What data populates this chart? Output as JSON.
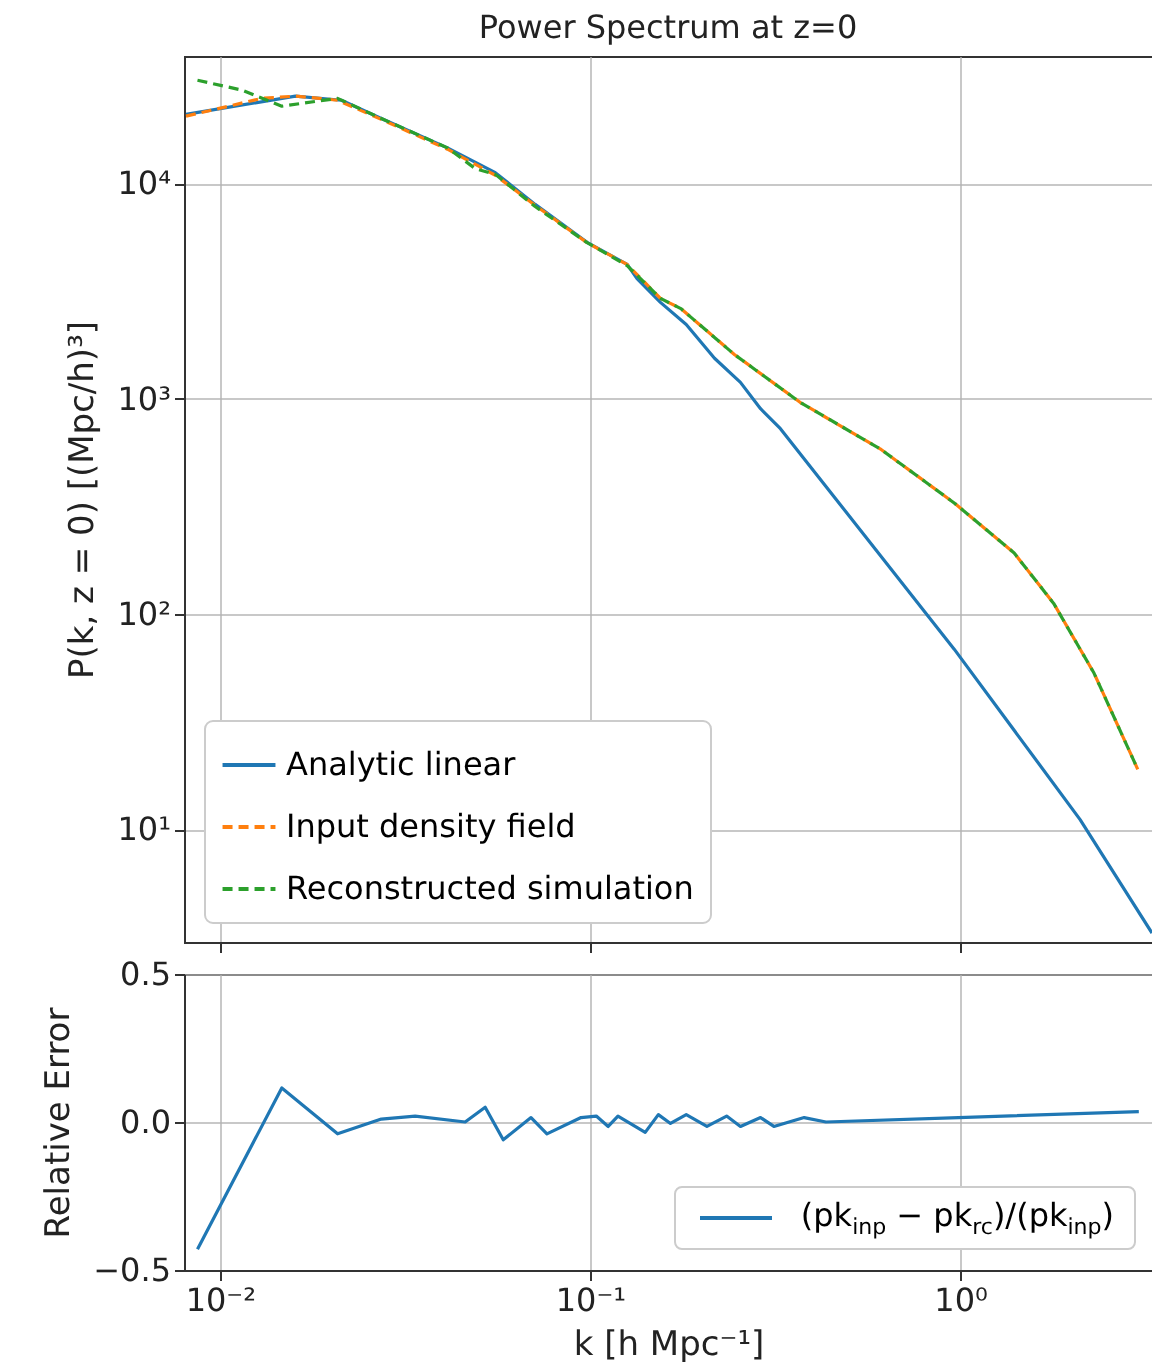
{
  "chart_data": [
    {
      "type": "line",
      "title": "Power Spectrum at z=0",
      "ylabel": "P(k, z = 0) [(Mpc/h)³]",
      "log": "xy",
      "grid": true,
      "legend": "bottom left",
      "tick_labels": "y",
      "xlim": [
        0.008,
        3.3
      ],
      "xticks": [
        {
          "value": 0.01,
          "label": null
        },
        {
          "value": 0.1,
          "label": null
        },
        {
          "value": 1,
          "label": null
        }
      ],
      "ylim": [
        3.0,
        39000
      ],
      "yticks": [
        {
          "value": 10,
          "label": "10¹"
        },
        {
          "value": 100,
          "label": "10²"
        },
        {
          "value": 1000,
          "label": "10³"
        },
        {
          "value": 10000,
          "label": "10⁴"
        }
      ],
      "series": [
        {
          "name": "Analytic linear",
          "color": "#1f77b4",
          "line_style": "solid",
          "x": [
            0.0081,
            0.016,
            0.0213,
            0.0273,
            0.0412,
            0.0555,
            0.0711,
            0.0982,
            0.126,
            0.134,
            0.155,
            0.182,
            0.217,
            0.255,
            0.289,
            0.327,
            0.964,
            2.11,
            3.3
          ],
          "values": [
            20900,
            25400,
            24300,
            20000,
            14600,
            11200,
            7980,
            5320,
            4200,
            3610,
            2800,
            2210,
            1540,
            1190,
            898,
            725,
            68.7,
            11.1,
            3.3
          ]
        },
        {
          "name": "Input density field",
          "color": "#ff7f0e",
          "line_style": "dashed",
          "x": [
            0.0081,
            0.013,
            0.016,
            0.0208,
            0.0273,
            0.0412,
            0.0555,
            0.0711,
            0.0982,
            0.126,
            0.155,
            0.176,
            0.246,
            0.371,
            0.608,
            0.964,
            1.4,
            1.79,
            2.3,
            3.02
          ],
          "values": [
            20500,
            24800,
            25400,
            24300,
            19800,
            14400,
            10900,
            7900,
            5300,
            4200,
            2920,
            2620,
            1600,
            957,
            585,
            328,
            192,
            112,
            53.2,
            19.0
          ]
        },
        {
          "name": "Reconstructed simulation",
          "color": "#2ca02c",
          "line_style": "dashed",
          "x": [
            0.0087,
            0.01146,
            0.0147,
            0.0208,
            0.0273,
            0.0412,
            0.049,
            0.0555,
            0.0711,
            0.0982,
            0.126,
            0.155,
            0.176,
            0.246,
            0.371,
            0.608,
            0.964,
            1.4,
            1.79,
            2.3,
            3.02
          ],
          "values": [
            30100,
            27100,
            22800,
            24800,
            20000,
            14600,
            11700,
            11000,
            7800,
            5300,
            4150,
            2920,
            2620,
            1600,
            957,
            585,
            328,
            192,
            112,
            53.2,
            19.0
          ]
        }
      ]
    },
    {
      "type": "line",
      "xlabel": "k [h Mpc⁻¹]",
      "ylabel": "Relative Error",
      "log": "x",
      "grid": true,
      "legend": "bottom right",
      "xlim": [
        0.008,
        3.3
      ],
      "xticks": [
        {
          "value": 0.01,
          "label": "10⁻²"
        },
        {
          "value": 0.1,
          "label": "10⁻¹"
        },
        {
          "value": 1,
          "label": "10⁰"
        }
      ],
      "ylim": [
        -0.5,
        0.5
      ],
      "yticks": [
        {
          "value": -0.5,
          "label": "−0.5"
        },
        {
          "value": 0,
          "label": "0.0"
        },
        {
          "value": 0.5,
          "label": "0.5"
        }
      ],
      "series": [
        {
          "name": "(pk$_{inp}$ − pk$_{rc}$)/(pk$_{inp}$)",
          "color": "#1f77b4",
          "line_style": "solid",
          "x": [
            0.0087,
            0.0147,
            0.0208,
            0.0273,
            0.0337,
            0.046,
            0.0521,
            0.0583,
            0.0693,
            0.0765,
            0.0946,
            0.104,
            0.112,
            0.119,
            0.141,
            0.153,
            0.165,
            0.182,
            0.207,
            0.234,
            0.255,
            0.289,
            0.314,
            0.379,
            0.434,
            0.99,
            3.04
          ],
          "values": [
            -0.43,
            0.115,
            -0.04,
            0.01,
            0.02,
            0.0,
            0.05,
            -0.06,
            0.015,
            -0.04,
            0.015,
            0.02,
            -0.015,
            0.02,
            -0.035,
            0.025,
            -0.005,
            0.025,
            -0.015,
            0.02,
            -0.015,
            0.015,
            -0.015,
            0.015,
            0.0,
            0.015,
            0.035
          ]
        }
      ]
    }
  ]
}
